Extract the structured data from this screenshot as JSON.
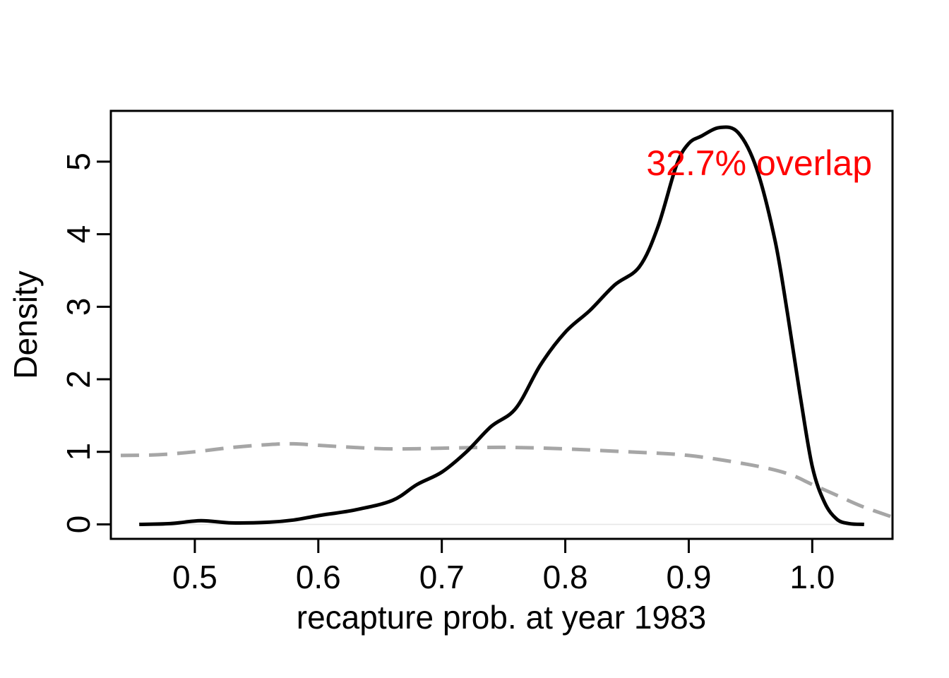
{
  "chart_data": {
    "type": "line",
    "title": "",
    "xlabel": "recapture prob. at year 1983",
    "ylabel": "Density",
    "xlim": [
      0.432,
      1.065
    ],
    "ylim": [
      -0.2,
      5.7
    ],
    "x_ticks": [
      0.5,
      0.6,
      0.7,
      0.8,
      0.9,
      1.0
    ],
    "x_tick_labels": [
      "0.5",
      "0.6",
      "0.7",
      "0.8",
      "0.9",
      "1.0"
    ],
    "y_ticks": [
      0,
      1,
      2,
      3,
      4,
      5
    ],
    "y_tick_labels": [
      "0",
      "1",
      "2",
      "3",
      "4",
      "5"
    ],
    "grid": false,
    "colors": {
      "posterior": "#000000",
      "prior": "#a6a6a6",
      "annotation": "#ff0000"
    },
    "annotation": "32.7% overlap",
    "series": [
      {
        "style": "solid",
        "x": [
          0.455,
          0.48,
          0.505,
          0.53,
          0.56,
          0.58,
          0.6,
          0.63,
          0.66,
          0.68,
          0.7,
          0.72,
          0.74,
          0.76,
          0.78,
          0.8,
          0.82,
          0.84,
          0.86,
          0.875,
          0.89,
          0.9,
          0.91,
          0.925,
          0.94,
          0.955,
          0.97,
          0.98,
          0.99,
          1.0,
          1.01,
          1.02,
          1.03,
          1.042
        ],
        "y": [
          0.0,
          0.01,
          0.05,
          0.02,
          0.03,
          0.06,
          0.12,
          0.2,
          0.33,
          0.55,
          0.72,
          1.0,
          1.35,
          1.6,
          2.2,
          2.65,
          2.95,
          3.3,
          3.55,
          4.1,
          4.95,
          5.25,
          5.35,
          5.47,
          5.4,
          4.9,
          3.9,
          2.9,
          1.8,
          0.8,
          0.3,
          0.07,
          0.01,
          0.0
        ]
      },
      {
        "style": "dashed",
        "x": [
          0.44,
          0.47,
          0.5,
          0.53,
          0.56,
          0.58,
          0.6,
          0.63,
          0.66,
          0.7,
          0.73,
          0.76,
          0.8,
          0.85,
          0.9,
          0.95,
          0.98,
          1.0,
          1.02,
          1.04,
          1.065
        ],
        "y": [
          0.95,
          0.96,
          1.0,
          1.06,
          1.1,
          1.11,
          1.09,
          1.06,
          1.04,
          1.05,
          1.06,
          1.06,
          1.04,
          1.0,
          0.95,
          0.82,
          0.7,
          0.55,
          0.4,
          0.25,
          0.1
        ]
      }
    ]
  }
}
